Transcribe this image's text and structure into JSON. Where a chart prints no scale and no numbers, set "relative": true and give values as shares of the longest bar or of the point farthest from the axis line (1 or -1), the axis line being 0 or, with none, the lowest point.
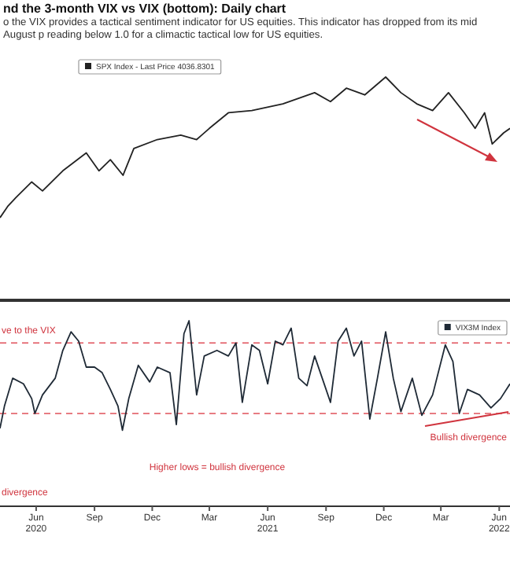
{
  "chart_data": [
    {
      "type": "line",
      "title": "nd the 3-month VIX vs VIX (bottom): Daily chart",
      "subtitle": "o the VIX provides a tactical sentiment indicator for US equities. This indicator has dropped from its mid August p reading below 1.0 for a climactic tactical low for US equities.",
      "relative": true,
      "legend": "top",
      "xlim": [
        "2020-04-05",
        "2022-06-18"
      ],
      "x": [
        "2020-04-05",
        "2020-04-17",
        "2020-04-30",
        "2020-05-25",
        "2020-06-11",
        "2020-07-13",
        "2020-08-19",
        "2020-09-08",
        "2020-09-26",
        "2020-10-16",
        "2020-11-02",
        "2020-12-09",
        "2021-01-15",
        "2021-02-09",
        "2021-03-01",
        "2021-03-31",
        "2021-05-07",
        "2021-06-25",
        "2021-08-14",
        "2021-09-08",
        "2021-10-03",
        "2021-11-01",
        "2021-12-04",
        "2021-12-28",
        "2022-01-22",
        "2022-02-16",
        "2022-03-13",
        "2022-04-07",
        "2022-04-24",
        "2022-05-09",
        "2022-05-21",
        "2022-06-08",
        "2022-06-18"
      ],
      "series": [
        {
          "name": "SPX Index - Last Price 4036.8301",
          "color": "#222222",
          "values": [
            0.37,
            0.42,
            0.46,
            0.53,
            0.49,
            0.58,
            0.66,
            0.58,
            0.63,
            0.56,
            0.68,
            0.72,
            0.74,
            0.72,
            0.77,
            0.84,
            0.85,
            0.88,
            0.93,
            0.89,
            0.95,
            0.92,
            1,
            0.93,
            0.88,
            0.85,
            0.93,
            0.84,
            0.77,
            0.84,
            0.7,
            0.75,
            0.77
          ]
        }
      ]
    },
    {
      "type": "line",
      "relative": true,
      "legend": "top right",
      "xlim": [
        "2020-04-05",
        "2022-06-18"
      ],
      "xticks": [
        {
          "value": "2020-06-01",
          "label": "Jun\n2020"
        },
        {
          "value": "2020-09-01",
          "label": "Sep"
        },
        {
          "value": "2020-12-01",
          "label": "Dec"
        },
        {
          "value": "2021-03-01",
          "label": "Mar"
        },
        {
          "value": "2021-06-01",
          "label": "Jun\n2021"
        },
        {
          "value": "2021-09-01",
          "label": "Sep"
        },
        {
          "value": "2021-12-01",
          "label": "Dec"
        },
        {
          "value": "2022-03-01",
          "label": "Mar"
        },
        {
          "value": "2022-06-01",
          "label": "Jun\n2022"
        }
      ],
      "x": [
        "2020-04-05",
        "2020-04-12",
        "2020-04-25",
        "2020-05-12",
        "2020-05-25",
        "2020-05-30",
        "2020-06-11",
        "2020-07-01",
        "2020-07-13",
        "2020-07-26",
        "2020-08-07",
        "2020-08-19",
        "2020-09-01",
        "2020-09-13",
        "2020-09-26",
        "2020-10-08",
        "2020-10-15",
        "2020-10-25",
        "2020-11-09",
        "2020-11-27",
        "2020-12-09",
        "2020-12-29",
        "2021-01-08",
        "2021-01-20",
        "2021-01-28",
        "2021-02-09",
        "2021-02-21",
        "2021-03-13",
        "2021-03-31",
        "2021-04-12",
        "2021-04-22",
        "2021-05-07",
        "2021-05-19",
        "2021-06-01",
        "2021-06-13",
        "2021-06-25",
        "2021-07-08",
        "2021-07-20",
        "2021-08-02",
        "2021-08-14",
        "2021-08-26",
        "2021-09-08",
        "2021-09-20",
        "2021-10-03",
        "2021-10-15",
        "2021-10-27",
        "2021-11-09",
        "2021-11-21",
        "2021-12-04",
        "2021-12-16",
        "2021-12-28",
        "2022-01-15",
        "2022-01-30",
        "2022-02-16",
        "2022-03-08",
        "2022-03-20",
        "2022-03-30",
        "2022-04-12",
        "2022-05-01",
        "2022-05-19",
        "2022-06-03",
        "2022-06-18"
      ],
      "series": [
        {
          "name": "VIX3M Index",
          "color": "#1f2a36",
          "values": [
            0.42,
            0.54,
            0.69,
            0.66,
            0.58,
            0.5,
            0.6,
            0.69,
            0.84,
            0.94,
            0.89,
            0.75,
            0.75,
            0.72,
            0.63,
            0.54,
            0.41,
            0.58,
            0.76,
            0.67,
            0.75,
            0.72,
            0.44,
            0.93,
            1,
            0.6,
            0.81,
            0.84,
            0.81,
            0.88,
            0.56,
            0.87,
            0.84,
            0.66,
            0.89,
            0.87,
            0.96,
            0.69,
            0.65,
            0.81,
            0.69,
            0.56,
            0.89,
            0.96,
            0.81,
            0.89,
            0.47,
            0.69,
            0.94,
            0.69,
            0.51,
            0.69,
            0.49,
            0.6,
            0.87,
            0.78,
            0.5,
            0.63,
            0.6,
            0.53,
            0.58,
            0.66
          ]
        }
      ],
      "ref_lines": [
        {
          "axis": "y",
          "value": 0.88,
          "color": "#e0505a",
          "line_style": "dashed"
        },
        {
          "axis": "y",
          "value": 0.5,
          "color": "#e0505a",
          "line_style": "dashed"
        }
      ],
      "annotations": [
        "ve to the VIX",
        "Bullish divergence",
        "Higher lows = bullish divergence",
        "divergence"
      ]
    }
  ]
}
